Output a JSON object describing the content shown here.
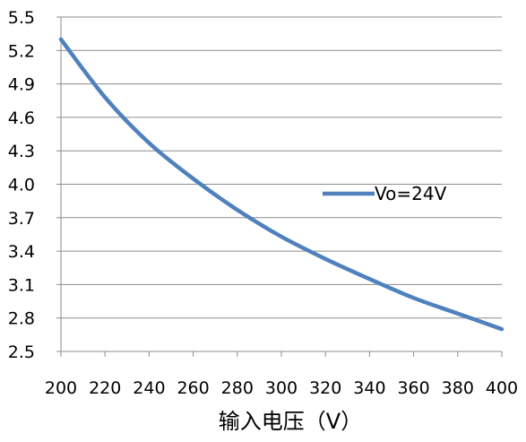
{
  "chart_data": {
    "type": "line",
    "xlabel": "输入电压（V）",
    "ylabel": "",
    "title": "",
    "xlim": [
      200,
      400
    ],
    "ylim": [
      2.5,
      5.5
    ],
    "x_ticks": [
      "200",
      "220",
      "240",
      "260",
      "280",
      "300",
      "320",
      "340",
      "360",
      "380",
      "400"
    ],
    "y_ticks": [
      "2.5",
      "2.8",
      "3.1",
      "3.4",
      "3.7",
      "4.0",
      "4.3",
      "4.6",
      "4.9",
      "5.2",
      "5.5"
    ],
    "grid": "horizontal",
    "legend": "right",
    "series": [
      {
        "name": "Vo=24V",
        "color": "#4f81bd",
        "x": [
          200,
          220,
          240,
          260,
          280,
          300,
          320,
          340,
          360,
          380,
          400
        ],
        "values": [
          5.3,
          4.78,
          4.37,
          4.05,
          3.77,
          3.53,
          3.33,
          3.15,
          2.98,
          2.84,
          2.7
        ]
      }
    ]
  }
}
